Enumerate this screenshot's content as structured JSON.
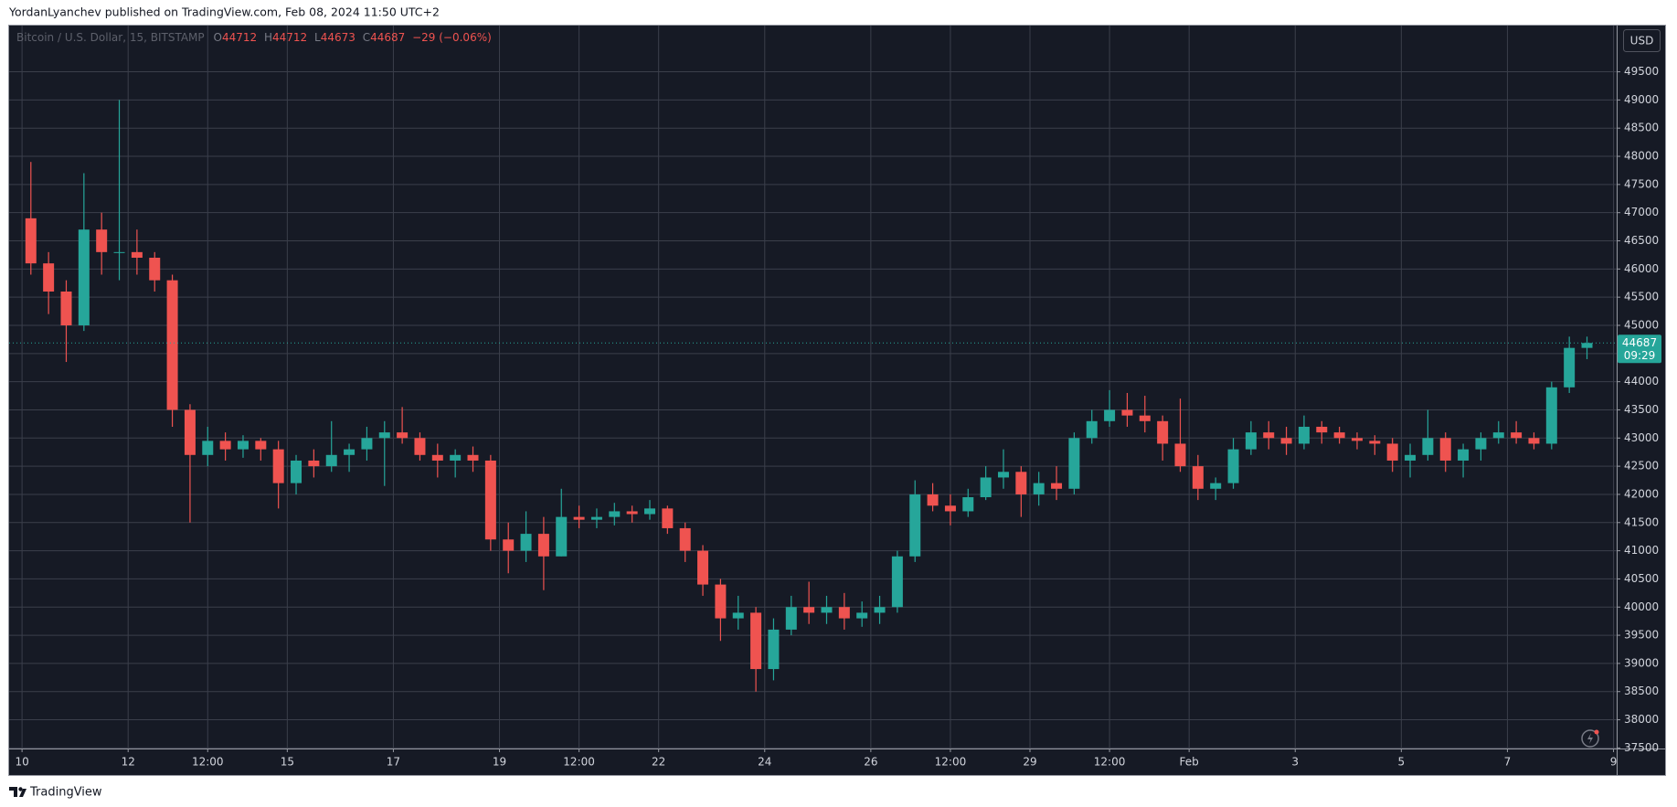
{
  "page": {
    "header": "YordanLyanchev published on TradingView.com, Feb 08, 2024 11:50 UTC+2",
    "footer": "TradingView"
  },
  "chart_data": {
    "type": "candlestick",
    "title": "Bitcoin / U.S. Dollar, 15, BITSTAMP",
    "legend": {
      "labels": [
        "O",
        "H",
        "L",
        "C"
      ],
      "open": 44712,
      "high": 44712,
      "low": 44673,
      "close": 44687,
      "change": "−29 (−0.06%)"
    },
    "currency": "USD",
    "countdown": "09:29",
    "x": [
      "2024-01-10T00:00",
      "2024-01-10T08:00",
      "2024-01-10T16:00",
      "2024-01-11T00:00",
      "2024-01-11T08:00",
      "2024-01-11T16:00",
      "2024-01-12T00:00",
      "2024-01-12T08:00",
      "2024-01-12T16:00",
      "2024-01-13T00:00",
      "2024-01-13T08:00",
      "2024-01-13T16:00",
      "2024-01-14T00:00",
      "2024-01-14T08:00",
      "2024-01-14T16:00",
      "2024-01-15T00:00",
      "2024-01-15T08:00",
      "2024-01-15T16:00",
      "2024-01-16T00:00",
      "2024-01-16T08:00",
      "2024-01-16T16:00",
      "2024-01-17T00:00",
      "2024-01-17T08:00",
      "2024-01-17T16:00",
      "2024-01-18T00:00",
      "2024-01-18T08:00",
      "2024-01-18T16:00",
      "2024-01-19T00:00",
      "2024-01-19T08:00",
      "2024-01-19T16:00",
      "2024-01-20T00:00",
      "2024-01-20T08:00",
      "2024-01-20T16:00",
      "2024-01-21T00:00",
      "2024-01-21T08:00",
      "2024-01-21T16:00",
      "2024-01-22T00:00",
      "2024-01-22T08:00",
      "2024-01-22T16:00",
      "2024-01-23T00:00",
      "2024-01-23T08:00",
      "2024-01-23T16:00",
      "2024-01-24T00:00",
      "2024-01-24T08:00",
      "2024-01-24T16:00",
      "2024-01-25T00:00",
      "2024-01-25T08:00",
      "2024-01-25T16:00",
      "2024-01-26T00:00",
      "2024-01-26T08:00",
      "2024-01-26T16:00",
      "2024-01-27T00:00",
      "2024-01-27T08:00",
      "2024-01-27T16:00",
      "2024-01-28T00:00",
      "2024-01-28T08:00",
      "2024-01-28T16:00",
      "2024-01-29T00:00",
      "2024-01-29T08:00",
      "2024-01-29T16:00",
      "2024-01-30T00:00",
      "2024-01-30T08:00",
      "2024-01-30T16:00",
      "2024-01-31T00:00",
      "2024-01-31T08:00",
      "2024-01-31T16:00",
      "2024-02-01T00:00",
      "2024-02-01T08:00",
      "2024-02-01T16:00",
      "2024-02-02T00:00",
      "2024-02-02T08:00",
      "2024-02-02T16:00",
      "2024-02-03T00:00",
      "2024-02-03T08:00",
      "2024-02-03T16:00",
      "2024-02-04T00:00",
      "2024-02-04T08:00",
      "2024-02-04T16:00",
      "2024-02-05T00:00",
      "2024-02-05T08:00",
      "2024-02-05T16:00",
      "2024-02-06T00:00",
      "2024-02-06T08:00",
      "2024-02-06T16:00",
      "2024-02-07T00:00",
      "2024-02-07T08:00",
      "2024-02-07T16:00",
      "2024-02-08T00:00",
      "2024-02-08T08:00"
    ],
    "series": [
      {
        "up_color": "#26a69a",
        "down_color": "#ef5350",
        "open": [
          46900,
          46100,
          45600,
          45000,
          46700,
          46300,
          46300,
          46200,
          45800,
          43500,
          42700,
          42950,
          42800,
          42950,
          42800,
          42200,
          42600,
          42500,
          42700,
          42800,
          43000,
          43100,
          43000,
          42700,
          42600,
          42700,
          42600,
          41200,
          41000,
          41300,
          40900,
          41600,
          41550,
          41600,
          41700,
          41650,
          41750,
          41400,
          41000,
          40400,
          39800,
          39900,
          38900,
          39600,
          40000,
          39900,
          40000,
          39800,
          39900,
          40000,
          40900,
          42000,
          41800,
          41700,
          41950,
          42300,
          42400,
          42000,
          42200,
          42100,
          43000,
          43300,
          43500,
          43400,
          43300,
          42900,
          42500,
          42100,
          42200,
          42800,
          43100,
          43000,
          42900,
          43200,
          43100,
          43000,
          42950,
          42900,
          42600,
          42700,
          43000,
          42600,
          42800,
          43000,
          43100,
          43000,
          42900,
          43900,
          44600
        ],
        "high": [
          47900,
          46300,
          45800,
          47700,
          47000,
          49000,
          46700,
          46300,
          45900,
          43600,
          43200,
          43100,
          43050,
          43000,
          42950,
          42700,
          42800,
          43300,
          42900,
          43200,
          43300,
          43550,
          43100,
          42900,
          42800,
          42850,
          42700,
          41500,
          41700,
          41600,
          42100,
          41800,
          41750,
          41850,
          41800,
          41900,
          41800,
          41500,
          41100,
          40500,
          40200,
          40000,
          39800,
          40200,
          40450,
          40200,
          40250,
          40100,
          40200,
          41000,
          42250,
          42200,
          42000,
          42100,
          42500,
          42800,
          42500,
          42400,
          42500,
          43100,
          43500,
          43850,
          43800,
          43750,
          43400,
          43700,
          42700,
          42300,
          43000,
          43300,
          43300,
          43200,
          43400,
          43300,
          43200,
          43100,
          43050,
          43000,
          42900,
          43500,
          43100,
          42900,
          43100,
          43300,
          43300,
          43100,
          44000,
          44800,
          44800
        ],
        "low": [
          45900,
          45200,
          44350,
          44900,
          45900,
          45800,
          45900,
          45600,
          43200,
          41500,
          42500,
          42600,
          42650,
          42600,
          41750,
          42000,
          42300,
          42400,
          42400,
          42600,
          42150,
          42900,
          42600,
          42300,
          42300,
          42400,
          41000,
          40600,
          40800,
          40300,
          40900,
          41400,
          41400,
          41450,
          41500,
          41550,
          41300,
          40800,
          40200,
          39400,
          39600,
          38500,
          38700,
          39500,
          39700,
          39700,
          39600,
          39650,
          39700,
          39900,
          40800,
          41700,
          41450,
          41600,
          41900,
          42100,
          41600,
          41800,
          41900,
          42000,
          42900,
          43200,
          43200,
          43100,
          42600,
          42400,
          41900,
          41900,
          42100,
          42700,
          42800,
          42700,
          42800,
          42900,
          42900,
          42800,
          42700,
          42400,
          42300,
          42600,
          42400,
          42300,
          42600,
          42900,
          42900,
          42800,
          42800,
          43800,
          44400
        ],
        "close": [
          46100,
          45600,
          45000,
          46700,
          46300,
          46300,
          46200,
          45800,
          43500,
          42700,
          42950,
          42800,
          42950,
          42800,
          42200,
          42600,
          42500,
          42700,
          42800,
          43000,
          43100,
          43000,
          42700,
          42600,
          42700,
          42600,
          41200,
          41000,
          41300,
          40900,
          41600,
          41550,
          41600,
          41700,
          41650,
          41750,
          41400,
          41000,
          40400,
          39800,
          39900,
          38900,
          39600,
          40000,
          39900,
          40000,
          39800,
          39900,
          40000,
          40900,
          42000,
          41800,
          41700,
          41950,
          42300,
          42400,
          42000,
          42200,
          42100,
          43000,
          43300,
          43500,
          43400,
          43300,
          42900,
          42500,
          42100,
          42200,
          42800,
          43100,
          43000,
          42900,
          43200,
          43100,
          43000,
          42950,
          42900,
          42600,
          42700,
          43000,
          42600,
          42800,
          43000,
          43100,
          43000,
          42900,
          43900,
          44600,
          44687
        ]
      }
    ],
    "xlim": [
      "2024-01-09T18:10",
      "2024-02-09T01:26"
    ],
    "xticks": [
      {
        "value": "2024-01-10T00:00",
        "label": "10"
      },
      {
        "value": "2024-01-12T00:00",
        "label": "12"
      },
      {
        "value": "2024-01-13T12:00",
        "label": "12:00"
      },
      {
        "value": "2024-01-15T00:00",
        "label": "15"
      },
      {
        "value": "2024-01-17T00:00",
        "label": "17"
      },
      {
        "value": "2024-01-19T00:00",
        "label": "19"
      },
      {
        "value": "2024-01-20T12:00",
        "label": "12:00"
      },
      {
        "value": "2024-01-22T00:00",
        "label": "22"
      },
      {
        "value": "2024-01-24T00:00",
        "label": "24"
      },
      {
        "value": "2024-01-26T00:00",
        "label": "26"
      },
      {
        "value": "2024-01-27T12:00",
        "label": "12:00"
      },
      {
        "value": "2024-01-29T00:00",
        "label": "29"
      },
      {
        "value": "2024-01-30T12:00",
        "label": "12:00"
      },
      {
        "value": "2024-02-01T00:00",
        "label": "Feb"
      },
      {
        "value": "2024-02-03T00:00",
        "label": "3"
      },
      {
        "value": "2024-02-05T00:00",
        "label": "5"
      },
      {
        "value": "2024-02-07T00:00",
        "label": "7"
      },
      {
        "value": "2024-02-09T00:00",
        "label": "9"
      }
    ],
    "ylim": [
      37490,
      50320
    ],
    "yticks": [
      37500,
      38000,
      38500,
      39000,
      39500,
      40000,
      40500,
      41000,
      41500,
      42000,
      42500,
      43000,
      43500,
      44000,
      44500,
      45000,
      45500,
      46000,
      46500,
      47000,
      47500,
      48000,
      48500,
      49000,
      49500
    ],
    "grid": true
  }
}
